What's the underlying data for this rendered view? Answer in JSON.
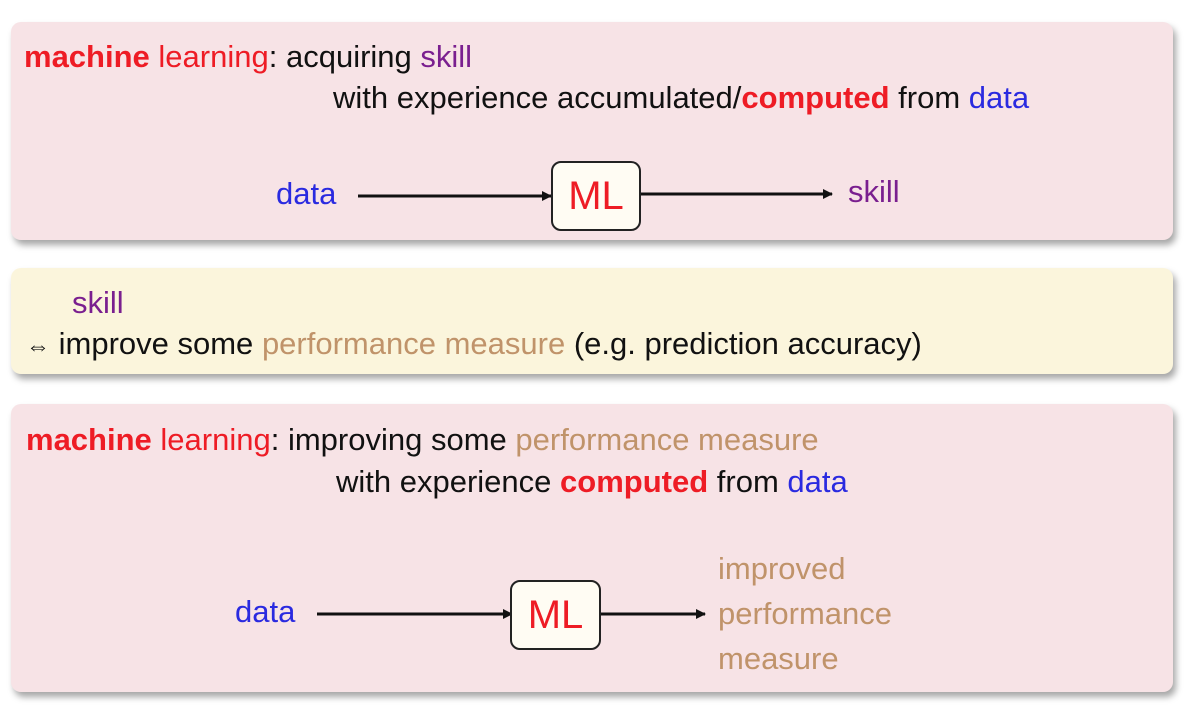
{
  "box1": {
    "term1": "machine",
    "term2": "learning",
    "colon": ":",
    "acquiring": "acquiring",
    "skill": "skill",
    "with_exp": "with experience accumulated/",
    "computed": "computed",
    "from": "from",
    "data": "data",
    "diagram": {
      "input": "data",
      "ml": "ML",
      "output": "skill"
    }
  },
  "box2": {
    "skill": "skill",
    "arrow": "⇔",
    "improve": "improve some",
    "perf": "performance measure",
    "rest": "(e.g. prediction accuracy)"
  },
  "box3": {
    "term1": "machine",
    "term2": "learning",
    "colon": ":",
    "improving": "improving some",
    "perf": "performance measure",
    "with_exp": "with experience",
    "computed": "computed",
    "from": "from",
    "data": "data",
    "diagram": {
      "input": "data",
      "ml": "ML",
      "output_lines": [
        "improved",
        "performance",
        "measure"
      ]
    }
  },
  "colors": {
    "pink_box": "#f7e3e6",
    "yellow_box": "#fbf5dc",
    "red": "#ee1c25",
    "blue": "#2a2ae0",
    "purple": "#7a1f8f",
    "tan": "#c0936a"
  }
}
